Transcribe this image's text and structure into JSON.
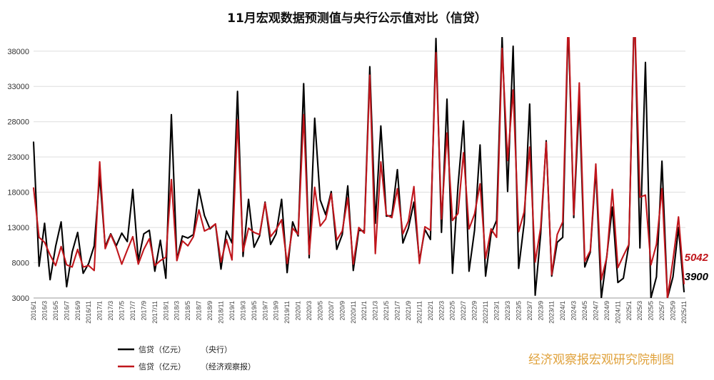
{
  "chart_data": {
    "type": "line",
    "title": "11月宏观数据预测值与央行公示值对比（信贷）",
    "xlabel": "",
    "ylabel": "",
    "ylim": [
      3000,
      40000
    ],
    "yticks": [
      3000,
      8000,
      13000,
      18000,
      23000,
      28000,
      33000,
      38000
    ],
    "grid": "horizontal",
    "legend_position": "bottom-left",
    "watermark": "经济观察报宏观研究院制图",
    "end_labels": [
      {
        "series": 1,
        "text": "5042",
        "color": "#c0161c"
      },
      {
        "series": 0,
        "text": "3900",
        "color": "#000000"
      }
    ],
    "categories": [
      "2016/1",
      "2016/2",
      "2016/3",
      "2016/4",
      "2016/5",
      "2016/6",
      "2016/7",
      "2016/8",
      "2016/9",
      "2016/10",
      "2016/11",
      "2016/12",
      "2017/1",
      "2017/2",
      "2017/3",
      "2017/4",
      "2017/5",
      "2017/6",
      "2017/7",
      "2017/8",
      "2017/9",
      "2017/10",
      "2017/11",
      "2017/12",
      "2018/1",
      "2018/2",
      "2018/3",
      "2018/4",
      "2018/5",
      "2018/6",
      "2018/7",
      "2018/8",
      "2018/9",
      "2018/10",
      "2018/11",
      "2018/12",
      "2019/1",
      "2019/2",
      "2019/3",
      "2019/4",
      "2019/5",
      "2019/6",
      "2019/7",
      "2019/8",
      "2019/9",
      "2019/10",
      "2019/11",
      "2019/12",
      "2020/1",
      "2020/2",
      "2020/3",
      "2020/4",
      "2020/5",
      "2020/6",
      "2020/7",
      "2020/8",
      "2020/9",
      "2020/10",
      "2020/11",
      "2020/12",
      "2021/1",
      "2021/2",
      "2021/3",
      "2021/4",
      "2021/5",
      "2021/6",
      "2021/7",
      "2021/8",
      "2021/9",
      "2021/10",
      "2021/11",
      "2021/12",
      "2022/1",
      "2022/2",
      "2022/3",
      "2022/4",
      "2022/5",
      "2022/6",
      "2022/7",
      "2022/8",
      "2022/9",
      "2022/10",
      "2022/11",
      "2022/12",
      "2023/1",
      "2023/2",
      "2023/3",
      "2023/4",
      "2023/5",
      "2023/6",
      "2023/7",
      "2023/8",
      "2023/9",
      "2023/10",
      "2023/11",
      "2023/12",
      "2024/1",
      "2024/2",
      "2024/3",
      "2024/4",
      "2024/5",
      "2024/6",
      "2024/7",
      "2024/8",
      "2024/9",
      "2024/10",
      "2024/11",
      "2024/12",
      "2025/1",
      "2025/2",
      "2025/3",
      "2025/4",
      "2025/5",
      "2025/6",
      "2025/7",
      "2025/8",
      "2025/9",
      "2025/10",
      "2025/11"
    ],
    "x_tick_labels": [
      "2016/1",
      "2016/3",
      "2016/5",
      "2016/7",
      "2016/9",
      "2016/11",
      "2017/1",
      "2017/3",
      "2017/5",
      "2017/7",
      "2017/9",
      "2017/11",
      "2018/1",
      "2018/3",
      "2018/5",
      "2018/7",
      "2018/9",
      "2018/11",
      "2019/1",
      "2019/3",
      "2019/5",
      "2019/7",
      "2019/9",
      "2019/11",
      "2020/1",
      "2020/3",
      "2020/5",
      "2020/7",
      "2020/9",
      "2020/11",
      "2021/1",
      "2021/3",
      "2021/5",
      "2021/7",
      "2021/9",
      "2021/11",
      "2022/1",
      "2022/3",
      "2022/5",
      "2022/7",
      "2022/9",
      "2022/11",
      "2023/1",
      "2023/3",
      "2023/5",
      "2023/7",
      "2023/9",
      "2023/11",
      "2024/1",
      "2024/3",
      "2024/5",
      "2024/7",
      "2024/9",
      "2024/11",
      "2025/1",
      "2025/3",
      "2025/5",
      "2025/7",
      "2025/9",
      "2025/11"
    ],
    "series": [
      {
        "name": "信贷（亿元）",
        "source": "（央行）",
        "color": "#000000",
        "values": [
          25100,
          7500,
          13600,
          5600,
          10300,
          13800,
          4600,
          9500,
          12300,
          6500,
          7900,
          10400,
          20300,
          10300,
          12100,
          10400,
          12200,
          11000,
          18400,
          8300,
          12100,
          12600,
          6800,
          11200,
          5800,
          29000,
          8400,
          11800,
          11500,
          12000,
          18400,
          14700,
          12800,
          13500,
          7100,
          12500,
          10800,
          32300,
          8900,
          17000,
          10200,
          11800,
          16600,
          10600,
          12100,
          17000,
          6600,
          13800,
          11800,
          33400,
          8700,
          28500,
          16900,
          14800,
          18100,
          9900,
          12000,
          18900,
          6900,
          12600,
          12500,
          35800,
          13600,
          27400,
          14600,
          14700,
          21200,
          10800,
          12900,
          16600,
          8300,
          12700,
          11300,
          39800,
          12300,
          31200,
          6500,
          18900,
          28100,
          6800,
          12600,
          24700,
          6100,
          12100,
          14000,
          40000,
          18100,
          38700,
          7200,
          13600,
          30500,
          3400,
          12100,
          25300,
          6100,
          10900,
          11600,
          42000,
          14400,
          31000,
          7400,
          9500,
          21300,
          3000,
          9000,
          15900,
          5200,
          5800,
          10600,
          45000,
          10100,
          36400,
          3000,
          6000,
          22400,
          3000,
          6000,
          13000,
          3900
        ]
      },
      {
        "name": "信贷（亿元）",
        "source": "（经济观察报）",
        "color": "#c0161c",
        "values": [
          18600,
          11600,
          10900,
          9100,
          7600,
          10300,
          7700,
          7400,
          9900,
          7400,
          7600,
          6900,
          22300,
          10000,
          12000,
          10200,
          7800,
          9800,
          11700,
          7800,
          9900,
          11400,
          7600,
          8300,
          8800,
          19800,
          8300,
          11100,
          10400,
          11700,
          15500,
          12500,
          12900,
          13500,
          8100,
          11300,
          8400,
          28300,
          9600,
          12900,
          12300,
          12000,
          16500,
          11700,
          12700,
          14100,
          7900,
          12900,
          12000,
          29000,
          9200,
          18700,
          13200,
          14200,
          17800,
          11200,
          12500,
          17200,
          7800,
          13000,
          12200,
          34600,
          9300,
          22300,
          14800,
          14400,
          18500,
          12100,
          13900,
          18800,
          7900,
          13100,
          12600,
          37800,
          14200,
          26400,
          14000,
          15000,
          23600,
          12800,
          14900,
          19200,
          8600,
          12800,
          11600,
          38400,
          22500,
          32500,
          12400,
          15200,
          24400,
          8100,
          13000,
          25100,
          6300,
          12000,
          13800,
          43000,
          14800,
          33500,
          8200,
          9700,
          22000,
          5600,
          8800,
          18400,
          7300,
          9000,
          10600,
          44000,
          17300,
          17600,
          7700,
          10600,
          18500,
          3000,
          8400,
          14500,
          5042
        ]
      }
    ]
  }
}
